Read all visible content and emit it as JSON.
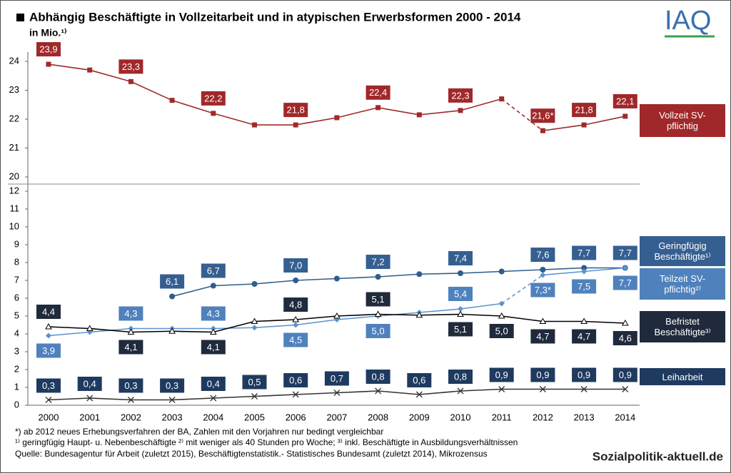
{
  "header": {
    "title": "Abhängig Beschäftigte in Vollzeitarbeit und in atypischen Erwerbsformen 2000 - 2014",
    "subtitle": "in Mio.¹⁾",
    "logo": "IAQ"
  },
  "chart_data": {
    "type": "line",
    "categories": [
      "2000",
      "2001",
      "2002",
      "2003",
      "2004",
      "2005",
      "2006",
      "2007",
      "2008",
      "2009",
      "2010",
      "2011",
      "2012",
      "2013",
      "2014"
    ],
    "ylim": [
      0,
      12
    ],
    "yticks": [
      0,
      1,
      2,
      3,
      4,
      5,
      6,
      7,
      8,
      9,
      10,
      11,
      12
    ],
    "y2lim": [
      20,
      24
    ],
    "y2ticks": [
      20,
      21,
      22,
      23,
      24
    ],
    "series": [
      {
        "name": "Vollzeit SV-pflichtig",
        "axis": "y2",
        "color": "#9e2b2b",
        "label_color": "#a0282a",
        "marker": "square",
        "dashed_from": "2011",
        "values": [
          23.9,
          23.7,
          23.3,
          22.65,
          22.2,
          21.8,
          21.8,
          22.05,
          22.4,
          22.15,
          22.3,
          22.7,
          21.6,
          21.8,
          22.1
        ],
        "value_labels": [
          "23,9",
          null,
          "23,3",
          null,
          "22,2",
          null,
          "21,8",
          null,
          "22,4",
          null,
          "22,3",
          null,
          "21,6*",
          "21,8",
          "22,1"
        ]
      },
      {
        "name": "Geringfügig Beschäftigte¹⁾",
        "color": "#2f5d8c",
        "label_color": "#365f91",
        "marker": "circle",
        "values": [
          null,
          null,
          null,
          6.1,
          6.7,
          6.8,
          7.0,
          7.1,
          7.2,
          7.35,
          7.4,
          7.5,
          7.6,
          7.7,
          7.7
        ],
        "value_labels": [
          null,
          null,
          null,
          "6,1",
          "6,7",
          null,
          "7,0",
          null,
          "7,2",
          null,
          "7,4",
          null,
          "7,6",
          "7,7",
          "7,7"
        ]
      },
      {
        "name": "Teilzeit SV-pflichtig²⁾",
        "color": "#5b93cf",
        "label_color": "#4f81bd",
        "marker": "diamond",
        "dashed_from": "2011",
        "values": [
          3.9,
          4.1,
          4.3,
          4.3,
          4.3,
          4.35,
          4.5,
          4.8,
          5.0,
          5.2,
          5.4,
          5.7,
          7.3,
          7.5,
          7.7
        ],
        "value_labels": [
          "3,9",
          null,
          "4,3",
          null,
          "4,3",
          null,
          "4,5",
          null,
          "5,0",
          null,
          "5,4",
          null,
          "7,3*",
          "7,5",
          "7,7"
        ]
      },
      {
        "name": "Befristet Beschäftigte³⁾",
        "color": "#000000",
        "label_color": "#1f2a3c",
        "marker": "triangle",
        "values": [
          4.4,
          4.3,
          4.1,
          4.15,
          4.1,
          4.7,
          4.8,
          5.0,
          5.1,
          5.05,
          5.1,
          5.0,
          4.7,
          4.7,
          4.6
        ],
        "value_labels": [
          "4,4",
          null,
          "4,1",
          null,
          "4,1",
          null,
          "4,8",
          null,
          "5,1",
          null,
          "5,1",
          "5,0",
          "4,7",
          "4,7",
          "4,6"
        ]
      },
      {
        "name": "Leiharbeit",
        "color": "#333333",
        "label_color": "#1f3a5f",
        "marker": "x",
        "values": [
          0.3,
          0.4,
          0.3,
          0.3,
          0.4,
          0.5,
          0.6,
          0.7,
          0.8,
          0.6,
          0.8,
          0.9,
          0.9,
          0.9,
          0.9
        ],
        "value_labels": [
          "0,3",
          "0,4",
          "0,3",
          "0,3",
          "0,4",
          "0,5",
          "0,6",
          "0,7",
          "0,8",
          "0,6",
          "0,8",
          "0,9",
          "0,9",
          "0,9",
          "0,9"
        ]
      }
    ]
  },
  "footnotes": [
    "*) ab 2012 neues Erhebungsverfahren der BA,  Zahlen mit den Vorjahren nur bedingt vergleichbar",
    "¹⁾ geringfügig Haupt- u. Nebenbeschäftigte ²⁾ mit weniger als 40 Stunden pro Woche;  ³⁾ inkl. Beschäftigte in Ausbildungsverhältnissen",
    "Quelle:  Bundesagentur für Arbeit (zuletzt 2015), Beschäftigtenstatistik.- Statistisches Bundesamt (zuletzt 2014), Mikrozensus"
  ],
  "source_logo": "Sozialpolitik-aktuell.de"
}
